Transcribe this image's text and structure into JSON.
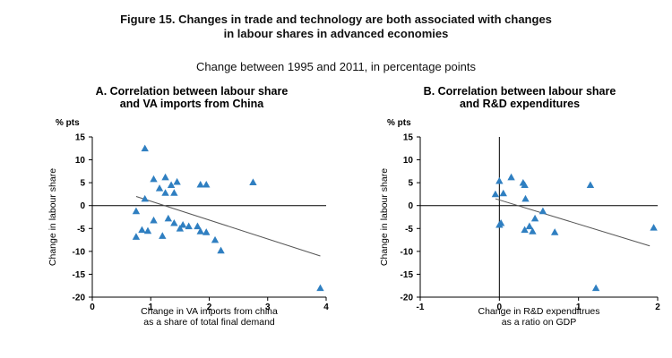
{
  "title_lines": [
    "Figure 15. Changes in trade and technology are both associated with changes",
    "in labour shares in advanced economies"
  ],
  "subtitle": "Change between 1995 and 2011, in percentage points",
  "colors": {
    "marker": "#2f7fc1",
    "trend": "#555555",
    "axis": "#000000"
  },
  "chart_data": [
    {
      "type": "scatter",
      "title_lines": [
        "A. Correlation between labour share",
        "and VA imports from China"
      ],
      "y_unit": "% pts",
      "ylabel": "Change in labour share",
      "xlabel_lines": [
        "Change in VA imports from china",
        "as a share of total final demand"
      ],
      "xlim": [
        0,
        4
      ],
      "ylim": [
        -20,
        15
      ],
      "xticks": [
        0,
        1,
        2,
        3,
        4
      ],
      "yticks": [
        15,
        10,
        5,
        0,
        -5,
        -10,
        -15,
        -20
      ],
      "points": [
        [
          0.9,
          12.5
        ],
        [
          1.25,
          6.2
        ],
        [
          1.05,
          5.8
        ],
        [
          1.45,
          5.2
        ],
        [
          1.35,
          4.5
        ],
        [
          1.85,
          4.6
        ],
        [
          1.95,
          4.6
        ],
        [
          2.75,
          5.1
        ],
        [
          1.15,
          3.8
        ],
        [
          1.25,
          2.8
        ],
        [
          1.4,
          2.8
        ],
        [
          0.9,
          1.5
        ],
        [
          0.75,
          -1.2
        ],
        [
          1.3,
          -2.8
        ],
        [
          1.05,
          -3.2
        ],
        [
          1.4,
          -3.8
        ],
        [
          1.55,
          -4.2
        ],
        [
          1.65,
          -4.5
        ],
        [
          1.8,
          -4.5
        ],
        [
          0.85,
          -5.3
        ],
        [
          0.95,
          -5.5
        ],
        [
          1.5,
          -5.0
        ],
        [
          1.85,
          -5.6
        ],
        [
          1.95,
          -5.8
        ],
        [
          0.75,
          -6.8
        ],
        [
          1.2,
          -6.6
        ],
        [
          2.1,
          -7.5
        ],
        [
          2.2,
          -9.8
        ],
        [
          3.9,
          -18.0
        ]
      ],
      "trend": [
        [
          0.75,
          2.0
        ],
        [
          3.9,
          -11.0
        ]
      ]
    },
    {
      "type": "scatter",
      "title_lines": [
        "B. Correlation between labour share",
        "and R&D expenditures"
      ],
      "y_unit": "% pts",
      "ylabel": "Change in labour share",
      "xlabel_lines": [
        "Change in R&D expenditrues",
        "as a ratio on GDP"
      ],
      "xlim": [
        -1,
        2
      ],
      "ylim": [
        -20,
        15
      ],
      "xticks": [
        -1,
        0,
        1,
        2
      ],
      "yticks": [
        15,
        10,
        5,
        0,
        -5,
        -10,
        -15,
        -20
      ],
      "points": [
        [
          0.15,
          6.2
        ],
        [
          0.0,
          5.4
        ],
        [
          0.3,
          5.0
        ],
        [
          0.32,
          4.5
        ],
        [
          1.15,
          4.5
        ],
        [
          -0.05,
          2.5
        ],
        [
          0.05,
          2.7
        ],
        [
          0.33,
          1.5
        ],
        [
          0.55,
          -1.2
        ],
        [
          0.45,
          -2.8
        ],
        [
          0.02,
          -3.8
        ],
        [
          0.0,
          -4.2
        ],
        [
          0.38,
          -4.5
        ],
        [
          0.32,
          -5.3
        ],
        [
          0.42,
          -5.6
        ],
        [
          0.7,
          -5.8
        ],
        [
          1.95,
          -4.8
        ],
        [
          1.22,
          -18.0
        ]
      ],
      "trend": [
        [
          -0.05,
          1.5
        ],
        [
          1.9,
          -8.8
        ]
      ]
    }
  ]
}
